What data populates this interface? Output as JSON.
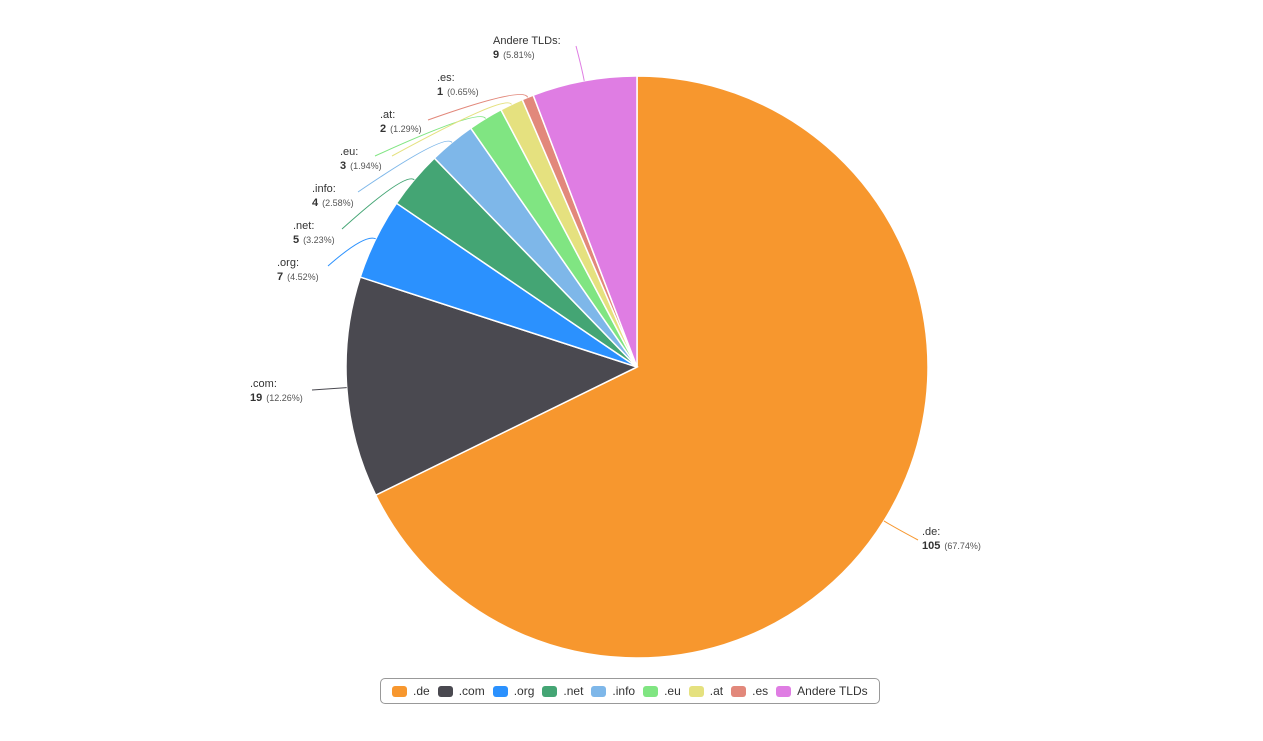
{
  "chart_data": {
    "type": "pie",
    "slices": [
      {
        "label": ".de",
        "value": 105,
        "percent": "67.74%",
        "color": "#f7972e"
      },
      {
        "label": ".com",
        "value": 19,
        "percent": "12.26%",
        "color": "#4a4950"
      },
      {
        "label": ".org",
        "value": 7,
        "percent": "4.52%",
        "color": "#2b91fe"
      },
      {
        "label": ".net",
        "value": 5,
        "percent": "3.23%",
        "color": "#44a574"
      },
      {
        "label": ".info",
        "value": 4,
        "percent": "2.58%",
        "color": "#7eb7e9"
      },
      {
        "label": ".eu",
        "value": 3,
        "percent": "1.94%",
        "color": "#80e582"
      },
      {
        "label": ".at",
        "value": 2,
        "percent": "1.29%",
        "color": "#e5e17f"
      },
      {
        "label": ".es",
        "value": 1,
        "percent": "0.65%",
        "color": "#e2887b"
      },
      {
        "label": "Andere TLDs",
        "value": 9,
        "percent": "5.81%",
        "color": "#df7de3"
      }
    ],
    "legend_position": "bottom-center"
  }
}
